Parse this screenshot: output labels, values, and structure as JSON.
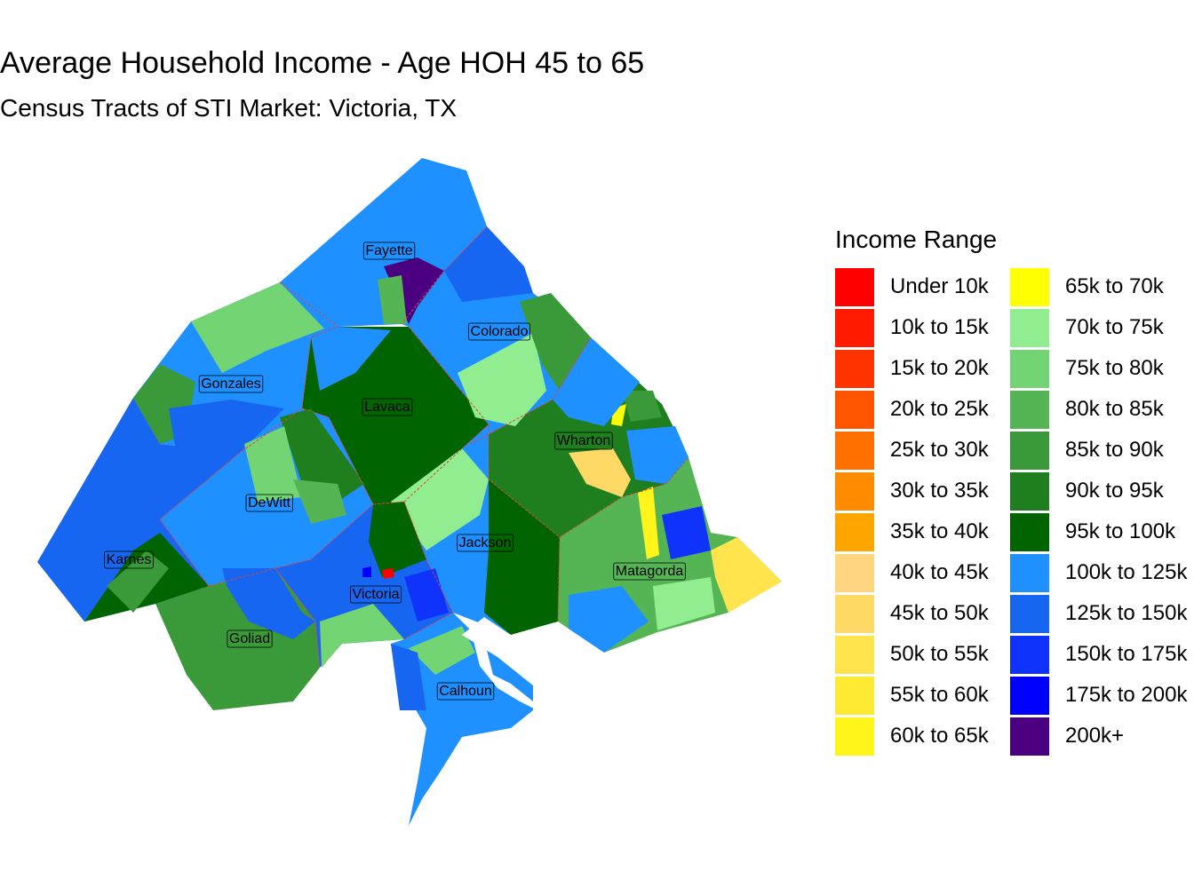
{
  "title": "Average Household Income - Age HOH 45 to 65",
  "subtitle": "Census Tracts of STI Market: Victoria, TX",
  "legend": {
    "title": "Income Range",
    "items": [
      {
        "label": "Under 10k",
        "color": "#FF0000"
      },
      {
        "label": "10k to 15k",
        "color": "#FF1A00"
      },
      {
        "label": "15k to 20k",
        "color": "#FF3300"
      },
      {
        "label": "20k to 25k",
        "color": "#FF5500"
      },
      {
        "label": "25k to 30k",
        "color": "#FF7000"
      },
      {
        "label": "30k to 35k",
        "color": "#FF8C00"
      },
      {
        "label": "35k to 40k",
        "color": "#FFA500"
      },
      {
        "label": "40k to 45k",
        "color": "#FFD580"
      },
      {
        "label": "45k to 50k",
        "color": "#FFD966"
      },
      {
        "label": "50k to 55k",
        "color": "#FFE44D"
      },
      {
        "label": "55k to 60k",
        "color": "#FFEA33"
      },
      {
        "label": "60k to 65k",
        "color": "#FFF51A"
      },
      {
        "label": "65k to 70k",
        "color": "#FFFF00"
      },
      {
        "label": "70k to 75k",
        "color": "#90EE90"
      },
      {
        "label": "75k to 80k",
        "color": "#72D472"
      },
      {
        "label": "80k to 85k",
        "color": "#55B555"
      },
      {
        "label": "85k to 90k",
        "color": "#3A9A3A"
      },
      {
        "label": "90k to 95k",
        "color": "#1F7F1F"
      },
      {
        "label": "95k to 100k",
        "color": "#006400"
      },
      {
        "label": "100k to 125k",
        "color": "#1E90FF"
      },
      {
        "label": "125k to 150k",
        "color": "#1766F2"
      },
      {
        "label": "150k to 175k",
        "color": "#0F33FA"
      },
      {
        "label": "175k to 200k",
        "color": "#0000FF"
      },
      {
        "label": "200k+",
        "color": "#4B0082"
      }
    ]
  },
  "counties": [
    {
      "name": "Fayette",
      "fill_range": "100k to 125k"
    },
    {
      "name": "Colorado",
      "fill_range": "100k to 125k"
    },
    {
      "name": "Gonzales",
      "fill_range": "100k to 125k"
    },
    {
      "name": "Lavaca",
      "fill_range": "95k to 100k"
    },
    {
      "name": "Wharton",
      "fill_range": "90k to 95k"
    },
    {
      "name": "DeWitt",
      "fill_range": "100k to 125k"
    },
    {
      "name": "Jackson",
      "fill_range": "100k to 125k"
    },
    {
      "name": "Karnes",
      "fill_range": "125k to 150k"
    },
    {
      "name": "Matagorda",
      "fill_range": "80k to 85k"
    },
    {
      "name": "Victoria",
      "fill_range": "125k to 150k"
    },
    {
      "name": "Goliad",
      "fill_range": "85k to 90k"
    },
    {
      "name": "Calhoun",
      "fill_range": "100k to 125k"
    }
  ]
}
